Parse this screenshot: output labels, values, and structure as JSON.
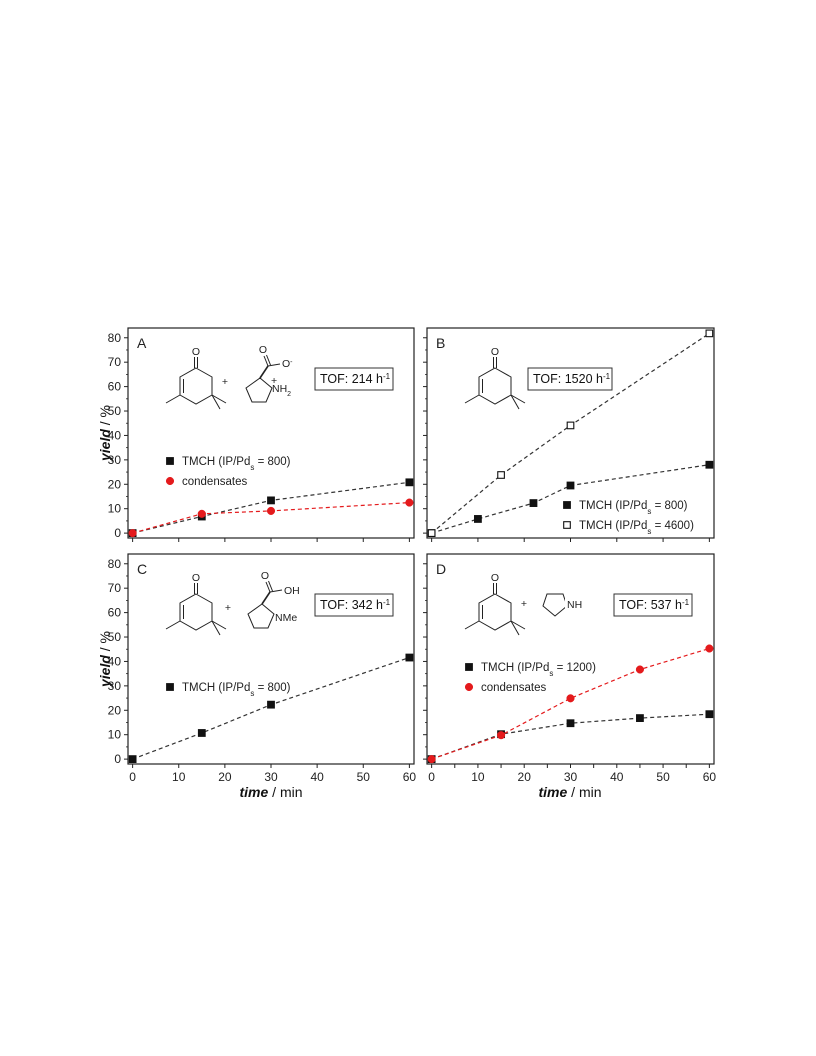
{
  "ylabel_parts": [
    "yield",
    " / %"
  ],
  "xlabel_parts": [
    "time",
    " / min"
  ],
  "colors": {
    "black": "#111111",
    "red": "#e41a1c",
    "dash_black": "#333333",
    "dash_red": "#e41a1c"
  },
  "chart_data": [
    {
      "id": "A",
      "type": "line",
      "letter": "A",
      "tof": {
        "prefix": "TOF: 214 h",
        "sup": "-1"
      },
      "x_ticks": [
        0,
        10,
        20,
        30,
        40,
        50,
        60
      ],
      "y_ticks": [
        0,
        10,
        20,
        30,
        40,
        50,
        60,
        70,
        80
      ],
      "xlim": [
        -1,
        61
      ],
      "ylim": [
        -2,
        84
      ],
      "show_x_tick_labels": false,
      "show_y_ticks": true,
      "legend_position": "middle-left",
      "series": [
        {
          "name_parts": {
            "main": "TMCH (IP/Pd",
            "sub": "s",
            "tail": " = 800)"
          },
          "marker": "square-filled",
          "color": "black",
          "x": [
            0,
            15,
            30,
            60
          ],
          "y": [
            0,
            6.8,
            13.4,
            20.8
          ]
        },
        {
          "name_parts": {
            "main": "condensates",
            "sub": "",
            "tail": ""
          },
          "marker": "circle-filled",
          "color": "red",
          "x": [
            0,
            15,
            30,
            60
          ],
          "y": [
            0,
            7.9,
            9.1,
            12.5
          ]
        }
      ],
      "molecules": [
        "isophorone",
        "prolinate"
      ],
      "chem_labels": {
        "o1": "O",
        "o2": "O",
        "ominus": "O",
        "minus": "-",
        "nh2": "NH",
        "nh2_sub": "2",
        "plus_charge": "+",
        "plus": "+"
      }
    },
    {
      "id": "B",
      "type": "line",
      "letter": "B",
      "tof": {
        "prefix": "TOF: 1520 h",
        "sup": "-1"
      },
      "x_ticks": [
        0,
        10,
        20,
        30,
        40,
        50,
        60
      ],
      "y_ticks": [
        0,
        10,
        20,
        30,
        40,
        50,
        60,
        70,
        80
      ],
      "xlim": [
        -1,
        61
      ],
      "ylim": [
        -2,
        84
      ],
      "show_x_tick_labels": false,
      "show_y_ticks": false,
      "legend_position": "bottom-right",
      "series": [
        {
          "name_parts": {
            "main": "TMCH (IP/Pd",
            "sub": "s",
            "tail": " = 800)"
          },
          "marker": "square-filled",
          "color": "black",
          "x": [
            0,
            10,
            22,
            30,
            60
          ],
          "y": [
            0,
            5.8,
            12.3,
            19.5,
            28
          ]
        },
        {
          "name_parts": {
            "main": "TMCH (IP/Pd",
            "sub": "s",
            "tail": " = 4600)"
          },
          "marker": "square-open",
          "color": "black",
          "x": [
            0,
            15,
            30,
            60
          ],
          "y": [
            0,
            23.8,
            44.1,
            81.8
          ]
        }
      ],
      "molecules": [
        "isophorone"
      ],
      "chem_labels": {
        "o1": "O"
      }
    },
    {
      "id": "C",
      "type": "line",
      "letter": "C",
      "tof": {
        "prefix": "TOF: 342 h",
        "sup": "-1"
      },
      "x_ticks": [
        0,
        10,
        20,
        30,
        40,
        50,
        60
      ],
      "y_ticks": [
        0,
        10,
        20,
        30,
        40,
        50,
        60,
        70,
        80
      ],
      "xlim": [
        -1,
        61
      ],
      "ylim": [
        -2,
        84
      ],
      "show_x_tick_labels": true,
      "show_y_ticks": true,
      "legend_position": "middle-left",
      "series": [
        {
          "name_parts": {
            "main": "TMCH (IP/Pd",
            "sub": "s",
            "tail": " = 800)"
          },
          "marker": "square-filled",
          "color": "black",
          "x": [
            0,
            15,
            30,
            60
          ],
          "y": [
            0,
            10.7,
            22.3,
            41.6
          ]
        }
      ],
      "molecules": [
        "isophorone",
        "n-methylproline"
      ],
      "chem_labels": {
        "o1": "O",
        "o2": "O",
        "oh": "OH",
        "nme": "NMe",
        "plus": "+"
      }
    },
    {
      "id": "D",
      "type": "line",
      "letter": "D",
      "tof": {
        "prefix": "TOF: 537 h",
        "sup": "-1"
      },
      "x_ticks": [
        0,
        5,
        10,
        15,
        20,
        25,
        30,
        35,
        40,
        45,
        50,
        55,
        60
      ],
      "x_tick_labels": [
        0,
        10,
        20,
        30,
        40,
        50,
        60
      ],
      "y_ticks": [
        0,
        10,
        20,
        30,
        40,
        50,
        60,
        70,
        80
      ],
      "xlim": [
        -1,
        61
      ],
      "ylim": [
        -2,
        84
      ],
      "show_x_tick_labels": true,
      "show_y_ticks": false,
      "legend_position": "middle-left",
      "series": [
        {
          "name_parts": {
            "main": "TMCH (IP/Pd",
            "sub": "s",
            "tail": " = 1200)"
          },
          "marker": "square-filled",
          "color": "black",
          "x": [
            0,
            15,
            30,
            45,
            60
          ],
          "y": [
            0,
            10.2,
            14.7,
            16.8,
            18.4
          ]
        },
        {
          "name_parts": {
            "main": "condensates",
            "sub": "",
            "tail": ""
          },
          "marker": "circle-filled",
          "color": "red",
          "x": [
            0,
            15,
            30,
            45,
            60
          ],
          "y": [
            0,
            9.8,
            24.9,
            36.7,
            45.3
          ]
        }
      ],
      "molecules": [
        "isophorone",
        "pyrrolidine"
      ],
      "chem_labels": {
        "o1": "O",
        "nh": "NH",
        "plus": "+"
      }
    }
  ]
}
